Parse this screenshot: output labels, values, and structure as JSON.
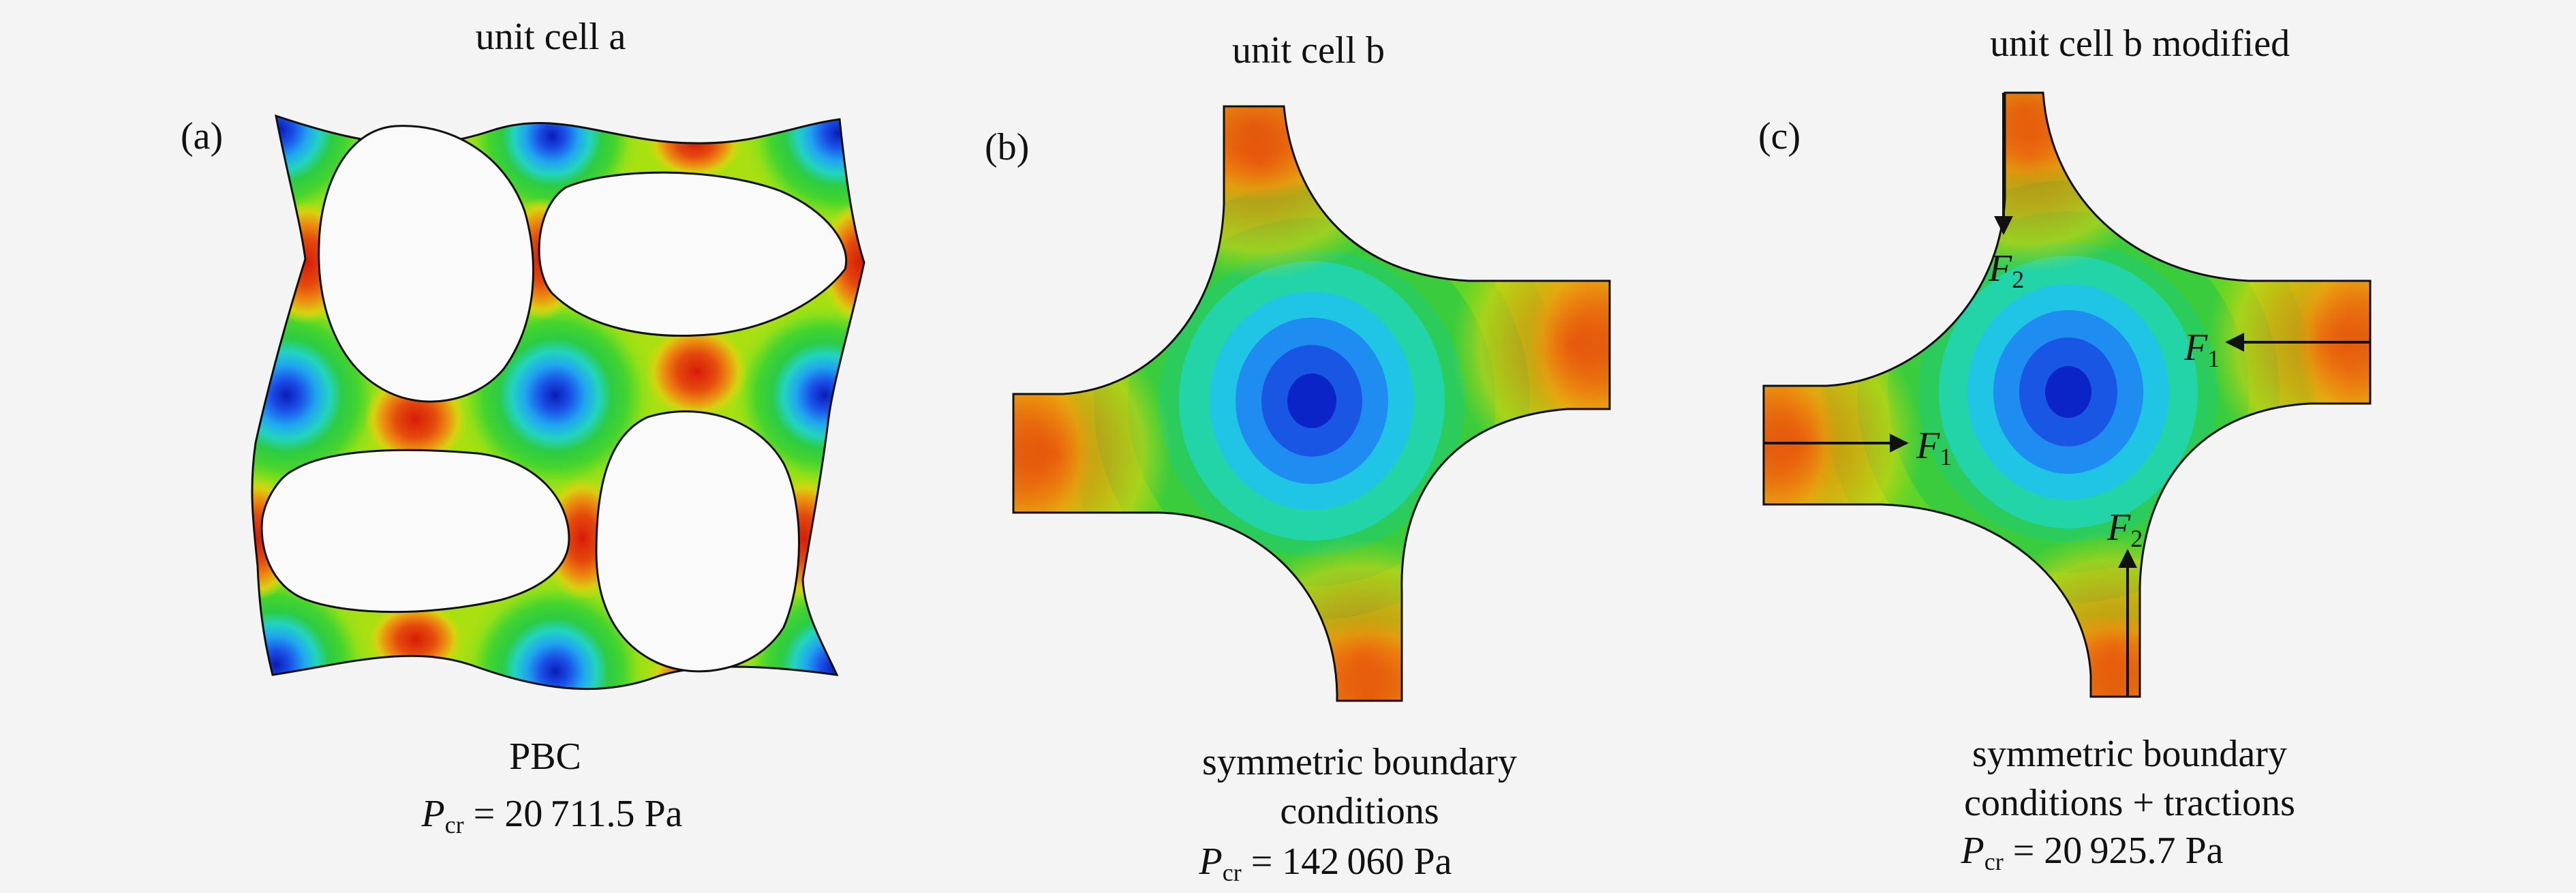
{
  "panels": [
    {
      "id": "a",
      "label": "(a)",
      "title": "unit cell a",
      "caption_lines": [
        "PBC"
      ],
      "pcr": {
        "symbol": "P",
        "subscript": "cr",
        "value": "20 711.5 Pa"
      }
    },
    {
      "id": "b",
      "label": "(b)",
      "title": "unit cell b",
      "caption_lines": [
        "symmetric boundary",
        "conditions"
      ],
      "pcr": {
        "symbol": "P",
        "subscript": "cr",
        "value": "142 060 Pa"
      }
    },
    {
      "id": "c",
      "label": "(c)",
      "title": "unit cell b modified",
      "caption_lines": [
        "symmetric boundary",
        "conditions + tractions"
      ],
      "pcr": {
        "symbol": "P",
        "subscript": "cr",
        "value": "20 925.7 Pa"
      },
      "forces": [
        {
          "name": "F",
          "sub": "2"
        },
        {
          "name": "F",
          "sub": "1"
        },
        {
          "name": "F",
          "sub": "1"
        },
        {
          "name": "F",
          "sub": "2"
        }
      ]
    }
  ],
  "colormap": [
    "#0a24c8",
    "#1e6cf0",
    "#20b4f0",
    "#20d8b0",
    "#2ccc44",
    "#66dd22",
    "#a8e010",
    "#d8dc10",
    "#e8b810",
    "#ec8010",
    "#e84c0c",
    "#d81c08"
  ]
}
